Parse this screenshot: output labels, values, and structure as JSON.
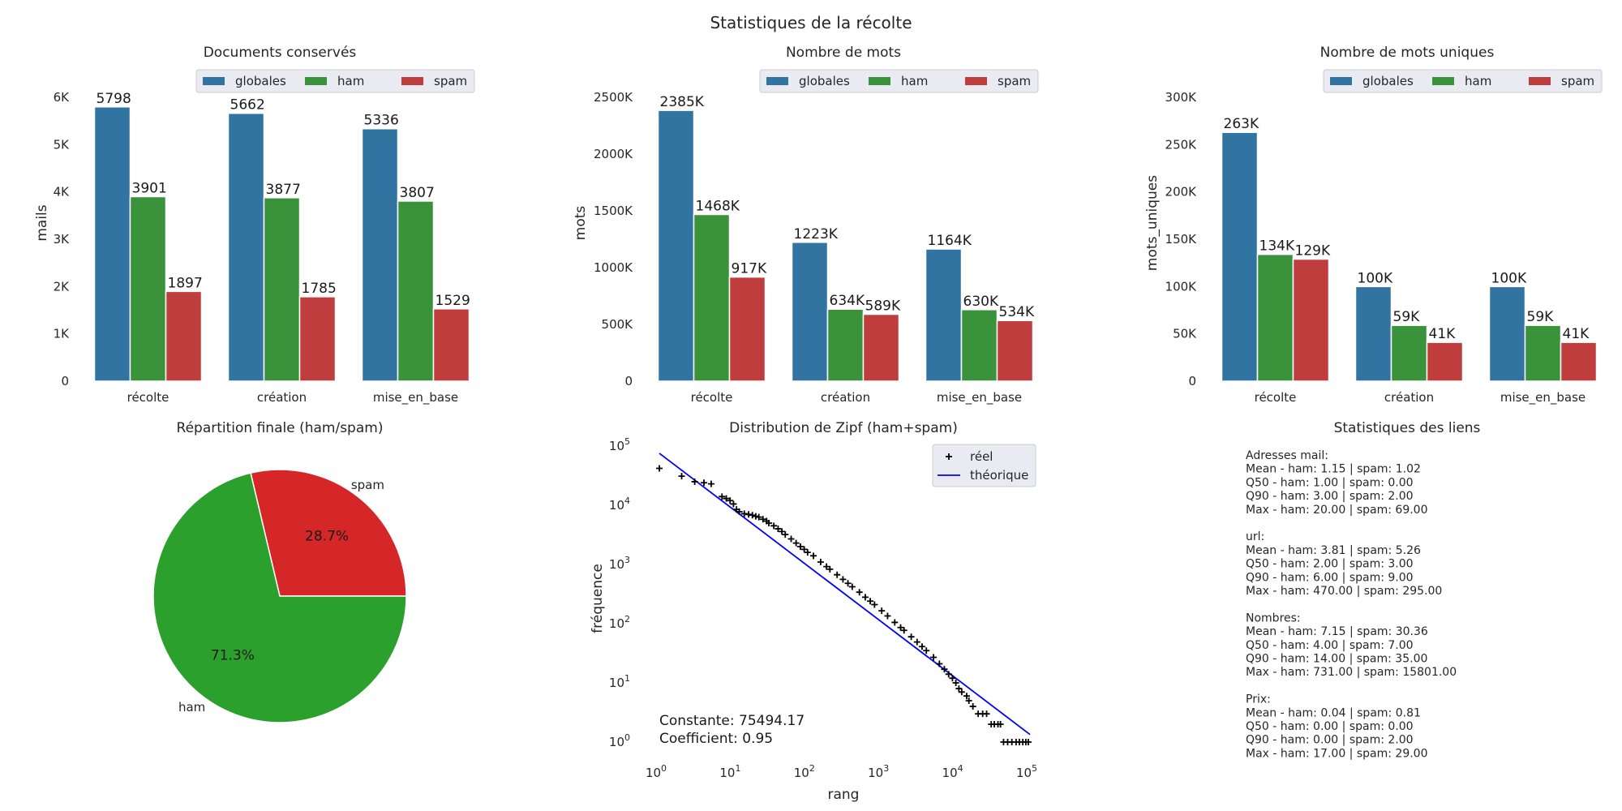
{
  "figure_title": "Statistiques de la récolte",
  "colors": {
    "globales": "#3274a1",
    "ham": "#3a923a",
    "spam": "#c03d3e",
    "pie_ham": "#2ca02c",
    "pie_spam": "#d62728",
    "legend_bg": "#eaeaf2",
    "zipf_line": "#0000ff",
    "zipf_points": "#000000"
  },
  "chart_data": [
    {
      "type": "bar",
      "title": "Documents conservés",
      "ylabel": "mails",
      "xlabel": "",
      "categories": [
        "récolte",
        "création",
        "mise_en_base"
      ],
      "series": [
        {
          "name": "globales",
          "values": [
            5798,
            5662,
            5336
          ],
          "labels": [
            "5798",
            "5662",
            "5336"
          ]
        },
        {
          "name": "ham",
          "values": [
            3901,
            3877,
            3807
          ],
          "labels": [
            "3901",
            "3877",
            "3807"
          ]
        },
        {
          "name": "spam",
          "values": [
            1897,
            1785,
            1529
          ],
          "labels": [
            "1897",
            "1785",
            "1529"
          ]
        }
      ],
      "ylim": [
        0,
        6000
      ],
      "yticks": [
        0,
        1000,
        2000,
        3000,
        4000,
        5000,
        6000
      ],
      "yticklabels": [
        "0",
        "1K",
        "2K",
        "3K",
        "4K",
        "5K",
        "6K"
      ],
      "legend": "top-right"
    },
    {
      "type": "bar",
      "title": "Nombre de mots",
      "ylabel": "mots",
      "xlabel": "",
      "categories": [
        "récolte",
        "création",
        "mise_en_base"
      ],
      "series": [
        {
          "name": "globales",
          "values": [
            2385000,
            1223000,
            1164000
          ],
          "labels": [
            "2385K",
            "1223K",
            "1164K"
          ]
        },
        {
          "name": "ham",
          "values": [
            1468000,
            634000,
            630000
          ],
          "labels": [
            "1468K",
            "634K",
            "630K"
          ]
        },
        {
          "name": "spam",
          "values": [
            917000,
            589000,
            534000
          ],
          "labels": [
            "917K",
            "589K",
            "534K"
          ]
        }
      ],
      "ylim": [
        0,
        2500000
      ],
      "yticks": [
        0,
        500000,
        1000000,
        1500000,
        2000000,
        2500000
      ],
      "yticklabels": [
        "0",
        "500K",
        "1000K",
        "1500K",
        "2000K",
        "2500K"
      ],
      "legend": "top-right"
    },
    {
      "type": "bar",
      "title": "Nombre de mots uniques",
      "ylabel": "mots_uniques",
      "xlabel": "",
      "categories": [
        "récolte",
        "création",
        "mise_en_base"
      ],
      "series": [
        {
          "name": "globales",
          "values": [
            263000,
            100000,
            100000
          ],
          "labels": [
            "263K",
            "100K",
            "100K"
          ]
        },
        {
          "name": "ham",
          "values": [
            134000,
            59000,
            59000
          ],
          "labels": [
            "134K",
            "59K",
            "59K"
          ]
        },
        {
          "name": "spam",
          "values": [
            129000,
            41000,
            41000
          ],
          "labels": [
            "129K",
            "41K",
            "41K"
          ]
        }
      ],
      "ylim": [
        0,
        300000
      ],
      "yticks": [
        0,
        50000,
        100000,
        150000,
        200000,
        250000,
        300000
      ],
      "yticklabels": [
        "0",
        "50K",
        "100K",
        "150K",
        "200K",
        "250K",
        "300K"
      ],
      "legend": "top-right"
    },
    {
      "type": "pie",
      "title": "Répartition finale (ham/spam)",
      "labels": [
        "spam",
        "ham"
      ],
      "values": [
        28.7,
        71.3
      ],
      "pct_labels": [
        "28.7%",
        "71.3%"
      ]
    },
    {
      "type": "scatter",
      "title": "Distribution de Zipf (ham+spam)",
      "xlabel": "rang",
      "ylabel": "fréquence",
      "log_x": true,
      "log_y": true,
      "xlim": [
        1,
        100000
      ],
      "ylim": [
        1,
        100000
      ],
      "xtick_exponents": [
        "0",
        "1",
        "2",
        "3",
        "4",
        "5"
      ],
      "ytick_exponents": [
        "0",
        "1",
        "2",
        "3",
        "4",
        "5"
      ],
      "tick_base": "10",
      "series": [
        {
          "name": "réel",
          "points": [
            [
              1,
              42000
            ],
            [
              2,
              31000
            ],
            [
              3,
              25000
            ],
            [
              4,
              24000
            ],
            [
              5,
              23000
            ],
            [
              7,
              14000
            ],
            [
              8,
              13000
            ],
            [
              9,
              12000
            ],
            [
              10,
              10500
            ],
            [
              11,
              8500
            ],
            [
              12,
              7800
            ],
            [
              14,
              7200
            ],
            [
              16,
              7000
            ],
            [
              18,
              6800
            ],
            [
              20,
              6500
            ],
            [
              22,
              6300
            ],
            [
              25,
              5800
            ],
            [
              28,
              5400
            ],
            [
              30,
              5000
            ],
            [
              35,
              4500
            ],
            [
              40,
              4000
            ],
            [
              45,
              3600
            ],
            [
              50,
              3200
            ],
            [
              60,
              2700
            ],
            [
              70,
              2300
            ],
            [
              80,
              2000
            ],
            [
              90,
              1800
            ],
            [
              100,
              1600
            ],
            [
              120,
              1400
            ],
            [
              150,
              1100
            ],
            [
              180,
              920
            ],
            [
              200,
              830
            ],
            [
              250,
              670
            ],
            [
              300,
              560
            ],
            [
              350,
              480
            ],
            [
              400,
              420
            ],
            [
              500,
              340
            ],
            [
              600,
              280
            ],
            [
              700,
              240
            ],
            [
              800,
              210
            ],
            [
              1000,
              165
            ],
            [
              1200,
              135
            ],
            [
              1500,
              105
            ],
            [
              1800,
              86
            ],
            [
              2000,
              77
            ],
            [
              2500,
              60
            ],
            [
              3000,
              49
            ],
            [
              3500,
              41
            ],
            [
              4000,
              35
            ],
            [
              5000,
              27
            ],
            [
              6000,
              21
            ],
            [
              7000,
              17
            ],
            [
              8000,
              14
            ],
            [
              9000,
              12
            ],
            [
              10000,
              10
            ],
            [
              11000,
              8
            ],
            [
              12000,
              7
            ],
            [
              14000,
              6
            ],
            [
              15000,
              5
            ],
            [
              17000,
              4
            ],
            [
              20000,
              3
            ],
            [
              23000,
              3
            ],
            [
              26000,
              3
            ],
            [
              30000,
              2
            ],
            [
              33000,
              2
            ],
            [
              37000,
              2
            ],
            [
              40000,
              2
            ],
            [
              44000,
              1
            ],
            [
              50000,
              1
            ],
            [
              57000,
              1
            ],
            [
              65000,
              1
            ],
            [
              72000,
              1
            ],
            [
              80000,
              1
            ],
            [
              88000,
              1
            ],
            [
              95000,
              1
            ]
          ]
        },
        {
          "name": "théorique",
          "constant": 75494.17,
          "coefficient": 0.95,
          "x_range": [
            1,
            100000
          ]
        }
      ],
      "annotations": [
        "Constante: 75494.17",
        "Coefficient: 0.95"
      ],
      "legend": "top-right"
    }
  ],
  "stats_panel": {
    "title": "Statistiques des liens",
    "lines": [
      "Adresses mail:",
      "Mean - ham: 1.15 | spam: 1.02",
      "Q50   - ham: 1.00 | spam: 0.00",
      "Q90   - ham: 3.00 | spam: 2.00",
      "Max   - ham: 20.00 | spam: 69.00",
      "",
      "url:",
      "Mean - ham: 3.81 | spam: 5.26",
      "Q50   - ham: 2.00 | spam: 3.00",
      "Q90   - ham: 6.00 | spam: 9.00",
      "Max   - ham: 470.00 | spam: 295.00",
      "",
      "Nombres:",
      "Mean - ham: 7.15 | spam: 30.36",
      "Q50   - ham: 4.00 | spam: 7.00",
      "Q90   - ham: 14.00 | spam: 35.00",
      "Max   - ham: 731.00 | spam: 15801.00",
      "",
      "Prix:",
      "Mean - ham: 0.04 | spam: 0.81",
      "Q50   - ham: 0.00 | spam: 0.00",
      "Q90   - ham: 0.00 | spam: 2.00",
      "Max   - ham: 17.00 | spam: 29.00"
    ]
  }
}
